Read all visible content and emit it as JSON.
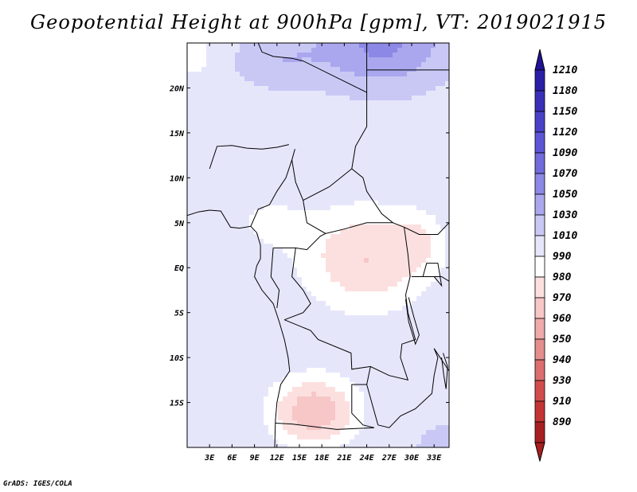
{
  "title": "Geopotential Height at 900hPa [gpm], VT: 2019021915",
  "credit": "GrADS: IGES/COLA",
  "map": {
    "lon_range": [
      0,
      35
    ],
    "lat_range": [
      -20,
      25
    ],
    "lon_ticks": [
      {
        "lon": 3,
        "label": "3E"
      },
      {
        "lon": 6,
        "label": "6E"
      },
      {
        "lon": 9,
        "label": "9E"
      },
      {
        "lon": 12,
        "label": "12E"
      },
      {
        "lon": 15,
        "label": "15E"
      },
      {
        "lon": 18,
        "label": "18E"
      },
      {
        "lon": 21,
        "label": "21E"
      },
      {
        "lon": 24,
        "label": "24E"
      },
      {
        "lon": 27,
        "label": "27E"
      },
      {
        "lon": 30,
        "label": "30E"
      },
      {
        "lon": 33,
        "label": "33E"
      }
    ],
    "lat_ticks": [
      {
        "lat": 20,
        "label": "20N"
      },
      {
        "lat": 15,
        "label": "15N"
      },
      {
        "lat": 10,
        "label": "10N"
      },
      {
        "lat": 5,
        "label": "5N"
      },
      {
        "lat": 0,
        "label": "EQ"
      },
      {
        "lat": -5,
        "label": "5S"
      },
      {
        "lat": -10,
        "label": "10S"
      },
      {
        "lat": -15,
        "label": "15S"
      }
    ],
    "field": {
      "base_value": 1000,
      "centers": [
        {
          "name": "northern-high",
          "lon": 26,
          "lat": 25,
          "amp": 55,
          "sx": 9,
          "sy": 5
        },
        {
          "name": "northwest-high",
          "lon": 12,
          "lat": 23,
          "amp": 25,
          "sx": 6,
          "sy": 3
        },
        {
          "name": "central-low",
          "lon": 24,
          "lat": 1,
          "amp": -30,
          "sx": 9,
          "sy": 6
        },
        {
          "name": "east-low",
          "lon": 31,
          "lat": 3,
          "amp": -12,
          "sx": 3,
          "sy": 3
        },
        {
          "name": "west-low",
          "lon": 11,
          "lat": 5,
          "amp": -12,
          "sx": 5,
          "sy": 3
        },
        {
          "name": "southern-low",
          "lon": 17,
          "lat": -16,
          "amp": -38,
          "sx": 6,
          "sy": 4
        },
        {
          "name": "sw-high",
          "lon": 2,
          "lat": -20,
          "amp": 10,
          "sx": 4,
          "sy": 4
        },
        {
          "name": "se-high",
          "lon": 34,
          "lat": -20,
          "amp": 18,
          "sx": 4,
          "sy": 3
        },
        {
          "name": "northwest-corner-low",
          "lon": 1,
          "lat": 24,
          "amp": -18,
          "sx": 3,
          "sy": 3
        }
      ]
    }
  },
  "colorbar": {
    "levels": [
      {
        "label": "1210",
        "color": "#211396"
      },
      {
        "label": "1180",
        "color": "#2b1fa8"
      },
      {
        "label": "1150",
        "color": "#3a30b8"
      },
      {
        "label": "1120",
        "color": "#4a41c8"
      },
      {
        "label": "1090",
        "color": "#5c55d4"
      },
      {
        "label": "1070",
        "color": "#716bdc"
      },
      {
        "label": "1050",
        "color": "#8c88e6"
      },
      {
        "label": "1030",
        "color": "#aaa7ee"
      },
      {
        "label": "1010",
        "color": "#c9c8f5"
      },
      {
        "label": "990",
        "color": "#e6e6fb"
      },
      {
        "label": "980",
        "color": "#ffffff"
      },
      {
        "label": "970",
        "color": "#fce0e0"
      },
      {
        "label": "960",
        "color": "#f7c6c6"
      },
      {
        "label": "950",
        "color": "#f0aaaa"
      },
      {
        "label": "940",
        "color": "#e48e8e"
      },
      {
        "label": "930",
        "color": "#dd6e6e"
      },
      {
        "label": "910",
        "color": "#d24c4c"
      },
      {
        "label": "890",
        "color": "#c43434"
      }
    ],
    "bottom_color": "#a81f1f"
  }
}
